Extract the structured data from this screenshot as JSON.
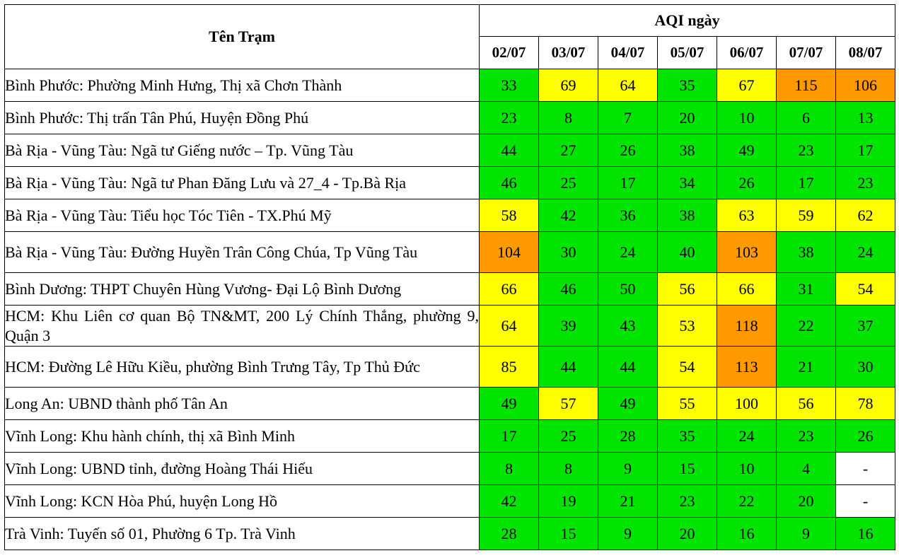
{
  "header": {
    "station_label": "Tên Trạm",
    "group_label": "AQI ngày",
    "dates": [
      "02/07",
      "03/07",
      "04/07",
      "05/07",
      "06/07",
      "07/07",
      "08/07"
    ]
  },
  "colors": {
    "good": "#00e400",
    "moderate": "#ffff00",
    "unhealthy_sensitive": "#ff9900",
    "no_data": "#ffffff"
  },
  "rows": [
    {
      "station": "Bình Phước: Phường Minh Hưng, Thị xã Chơn Thành",
      "values": [
        "33",
        "69",
        "64",
        "35",
        "67",
        "115",
        "106"
      ]
    },
    {
      "station": "Bình Phước: Thị trấn Tân Phú, Huyện Đồng Phú",
      "values": [
        "23",
        "8",
        "7",
        "20",
        "10",
        "6",
        "13"
      ]
    },
    {
      "station": "Bà Rịa - Vũng Tàu: Ngã tư Giếng nước – Tp. Vũng Tàu",
      "values": [
        "44",
        "27",
        "26",
        "38",
        "49",
        "23",
        "17"
      ]
    },
    {
      "station": "Bà Rịa - Vũng Tàu: Ngã tư Phan Đăng Lưu và 27_4 - Tp.Bà Rịa",
      "values": [
        "46",
        "25",
        "17",
        "34",
        "26",
        "17",
        "23"
      ]
    },
    {
      "station": "Bà Rịa - Vũng Tàu: Tiểu học Tóc Tiên - TX.Phú Mỹ",
      "values": [
        "58",
        "42",
        "36",
        "38",
        "63",
        "59",
        "62"
      ]
    },
    {
      "station": "Bà Rịa - Vũng Tàu: Đường Huyền Trân Công Chúa, Tp Vũng Tàu",
      "values": [
        "104",
        "30",
        "24",
        "40",
        "103",
        "38",
        "24"
      ]
    },
    {
      "station": "Bình Dương: THPT Chuyên Hùng Vương- Đại Lộ Bình Dương",
      "values": [
        "66",
        "46",
        "50",
        "56",
        "66",
        "31",
        "54"
      ]
    },
    {
      "station": "HCM: Khu Liên cơ quan Bộ TN&MT, 200 Lý Chính Thắng, phường 9, Quận 3",
      "values": [
        "64",
        "39",
        "43",
        "53",
        "118",
        "22",
        "37"
      ]
    },
    {
      "station": "HCM: Đường Lê Hữu Kiều, phường Bình Trưng Tây, Tp Thủ Đức",
      "values": [
        "85",
        "44",
        "44",
        "54",
        "113",
        "21",
        "30"
      ]
    },
    {
      "station": "Long An: UBND thành phố Tân An",
      "values": [
        "49",
        "57",
        "49",
        "55",
        "100",
        "56",
        "78"
      ]
    },
    {
      "station": "Vĩnh Long: Khu hành chính, thị xã Bình Minh",
      "values": [
        "17",
        "25",
        "28",
        "35",
        "24",
        "23",
        "26"
      ]
    },
    {
      "station": "Vĩnh Long: UBND tỉnh, đường Hoàng Thái Hiếu",
      "values": [
        "8",
        "8",
        "9",
        "15",
        "10",
        "4",
        "-"
      ]
    },
    {
      "station": "Vĩnh Long: KCN Hòa Phú, huyện Long Hồ",
      "values": [
        "42",
        "19",
        "21",
        "23",
        "22",
        "20",
        "-"
      ]
    },
    {
      "station": "Trà Vinh: Tuyến số 01, Phường 6 Tp. Trà Vinh",
      "values": [
        "28",
        "15",
        "9",
        "20",
        "16",
        "9",
        "16"
      ]
    }
  ]
}
